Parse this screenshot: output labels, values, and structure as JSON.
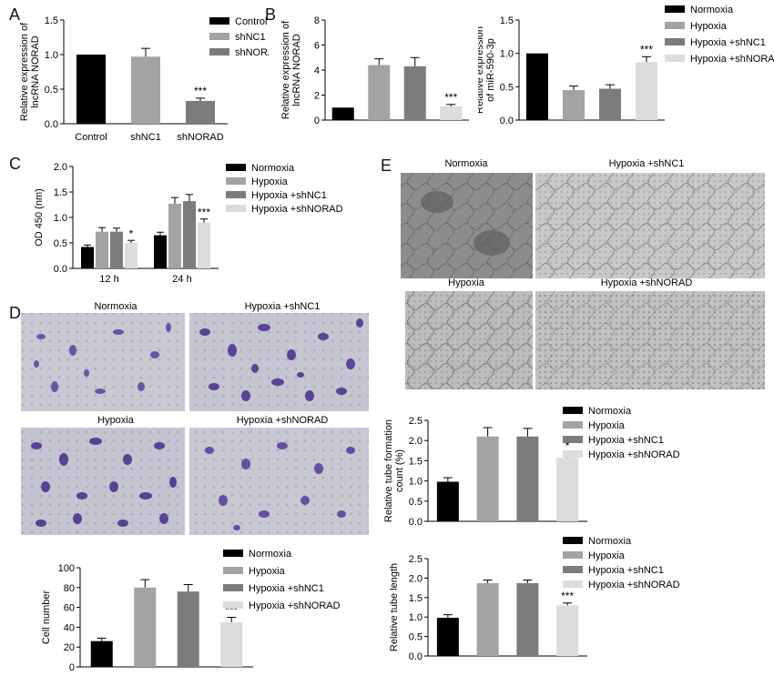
{
  "panels": {
    "A": "A",
    "B": "B",
    "C": "C",
    "D": "D",
    "E": "E"
  },
  "colors": {
    "normoxia": "#000000",
    "hypoxia": "#a3a3a3",
    "hypoxia_shnc1": "#7c7c7c",
    "hypoxia_shnorad": "#dcdcdc",
    "control": "#000000",
    "shnc1": "#a3a3a3",
    "shnorad": "#7c7c7c"
  },
  "images": {
    "D": [
      {
        "label": "Normoxia"
      },
      {
        "label": "Hypoxia +shNC1"
      },
      {
        "label": "Hypoxia"
      },
      {
        "label": "Hypoxia +shNORAD"
      }
    ],
    "E": [
      {
        "label": "Normoxia"
      },
      {
        "label": "Hypoxia +shNC1"
      },
      {
        "label": "Hypoxia"
      },
      {
        "label": "Hypoxia +shNORAD"
      }
    ]
  },
  "chart_data": [
    {
      "id": "A",
      "type": "bar",
      "categories": [
        "Control",
        "shNC1",
        "shNORAD"
      ],
      "values": [
        1.0,
        0.97,
        0.33
      ],
      "errors": [
        0.0,
        0.12,
        0.04
      ],
      "annotations": [
        "",
        "",
        "***"
      ],
      "ylabel": "Relative expression of lncRNA NORAD",
      "ylim": [
        0,
        1.5
      ],
      "yticks": [
        "0.0",
        "0.5",
        "1.0",
        "1.5"
      ],
      "legend": [
        "Control",
        "shNC1",
        "shNORAD"
      ]
    },
    {
      "id": "B1",
      "type": "bar",
      "categories": [
        "Normoxia",
        "Hypoxia",
        "Hypoxia +shNC1",
        "Hypoxia +shNORAD"
      ],
      "values": [
        1.0,
        4.4,
        4.3,
        1.1
      ],
      "errors": [
        0.0,
        0.5,
        0.7,
        0.15
      ],
      "annotations": [
        "",
        "",
        "",
        "***"
      ],
      "ylabel": "Relative expression of lncRNA NORAD",
      "ylim": [
        0,
        8
      ],
      "yticks": [
        "0",
        "2",
        "4",
        "6",
        "8"
      ]
    },
    {
      "id": "B2",
      "type": "bar",
      "categories": [
        "Normoxia",
        "Hypoxia",
        "Hypoxia +shNC1",
        "Hypoxia +shNORAD"
      ],
      "values": [
        1.0,
        0.45,
        0.47,
        0.87
      ],
      "errors": [
        0.0,
        0.06,
        0.06,
        0.08
      ],
      "annotations": [
        "",
        "",
        "",
        "***"
      ],
      "ylabel": "Relative expression of miR-590-3p",
      "ylim": [
        0,
        1.5
      ],
      "yticks": [
        "0.0",
        "0.5",
        "1.0",
        "1.5"
      ],
      "legend": [
        "Normoxia",
        "Hypoxia",
        "Hypoxia +shNC1",
        "Hypoxia +shNORAD"
      ]
    },
    {
      "id": "C",
      "type": "bar",
      "categories": [
        "12 h",
        "24 h"
      ],
      "series": [
        {
          "name": "Normoxia",
          "values": [
            0.42,
            0.65
          ],
          "errors": [
            0.04,
            0.06
          ],
          "annotations": [
            "",
            ""
          ]
        },
        {
          "name": "Hypoxia",
          "values": [
            0.72,
            1.27
          ],
          "errors": [
            0.08,
            0.12
          ],
          "annotations": [
            "",
            ""
          ]
        },
        {
          "name": "Hypoxia +shNC1",
          "values": [
            0.72,
            1.32
          ],
          "errors": [
            0.07,
            0.13
          ],
          "annotations": [
            "",
            ""
          ]
        },
        {
          "name": "Hypoxia +shNORAD",
          "values": [
            0.5,
            0.9
          ],
          "errors": [
            0.05,
            0.07
          ],
          "annotations": [
            "*",
            "***"
          ]
        }
      ],
      "ylabel": "OD 450 (nm)",
      "ylim": [
        0,
        2.0
      ],
      "yticks": [
        "0.0",
        "0.5",
        "1.0",
        "1.5",
        "2.0"
      ]
    },
    {
      "id": "D",
      "type": "bar",
      "categories": [
        "Normoxia",
        "Hypoxia",
        "Hypoxia +shNC1",
        "Hypoxia +shNORAD"
      ],
      "values": [
        26,
        80,
        76,
        45
      ],
      "errors": [
        3,
        8,
        7,
        5
      ],
      "annotations": [
        "",
        "",
        "",
        "***"
      ],
      "ylabel": "Cell number",
      "ylim": [
        0,
        100
      ],
      "yticks": [
        "0",
        "20",
        "40",
        "60",
        "80",
        "100"
      ],
      "legend": [
        "Normoxia",
        "Hypoxia",
        "Hypoxia +shNC1",
        "Hypoxia +shNORAD"
      ]
    },
    {
      "id": "E1",
      "type": "bar",
      "categories": [
        "Normoxia",
        "Hypoxia",
        "Hypoxia +shNC1",
        "Hypoxia +shNORAD"
      ],
      "values": [
        0.98,
        2.1,
        2.1,
        1.57
      ],
      "errors": [
        0.1,
        0.22,
        0.2,
        0.12
      ],
      "annotations": [
        "",
        "",
        "",
        "*"
      ],
      "ylabel": "Relative tube formation count (%)",
      "ylim": [
        0,
        2.5
      ],
      "yticks": [
        "0.0",
        "0.5",
        "1.0",
        "1.5",
        "2.0",
        "2.5"
      ],
      "legend": [
        "Normoxia",
        "Hypoxia",
        "Hypoxia +shNC1",
        "Hypoxia +shNORAD"
      ]
    },
    {
      "id": "E2",
      "type": "bar",
      "categories": [
        "Normoxia",
        "Hypoxia",
        "Hypoxia +shNC1",
        "Hypoxia +shNORAD"
      ],
      "values": [
        0.98,
        1.87,
        1.87,
        1.3
      ],
      "errors": [
        0.08,
        0.08,
        0.08,
        0.06
      ],
      "annotations": [
        "",
        "",
        "",
        "***"
      ],
      "ylabel": "Relative tube length",
      "ylim": [
        0,
        2.5
      ],
      "yticks": [
        "0.0",
        "0.5",
        "1.0",
        "1.5",
        "2.0",
        "2.5"
      ],
      "legend": [
        "Normoxia",
        "Hypoxia",
        "Hypoxia +shNC1",
        "Hypoxia +shNORAD"
      ]
    }
  ]
}
